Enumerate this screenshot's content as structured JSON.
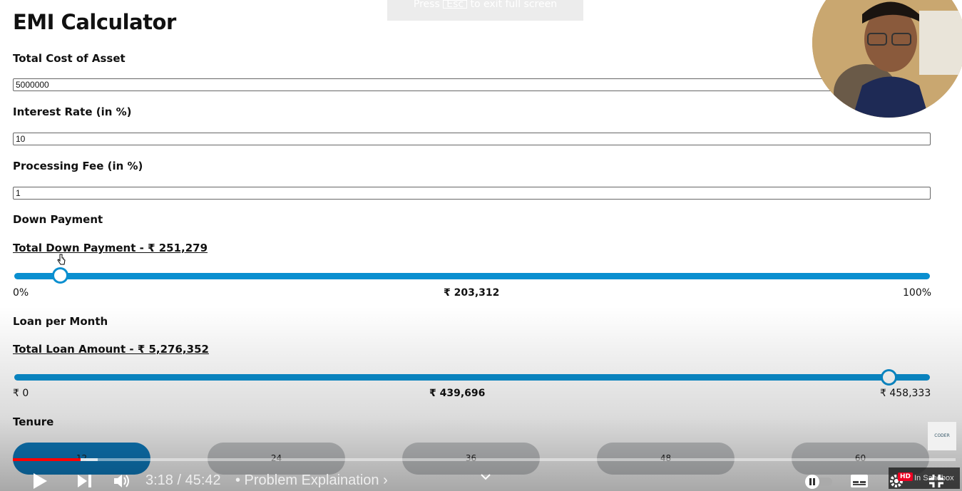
{
  "app": {
    "title": "EMI Calculator"
  },
  "fields": {
    "total_cost": {
      "label": "Total Cost of Asset",
      "value": "5000000"
    },
    "interest_rate": {
      "label": "Interest Rate (in %)",
      "value": "10"
    },
    "processing_fee": {
      "label": "Processing Fee (in %)",
      "value": "1"
    }
  },
  "down_payment": {
    "label": "Down Payment",
    "summary": "Total Down Payment - ₹ 251,279",
    "slider_fraction": 0.05,
    "min_label": "0%",
    "value_label": "₹ 203,312",
    "max_label": "100%"
  },
  "loan": {
    "label": "Loan per Month",
    "summary": "Total Loan Amount - ₹ 5,276,352",
    "slider_fraction": 0.955,
    "min_label": "₹ 0",
    "value_label": "₹ 439,696",
    "max_label": "₹ 458,333"
  },
  "tenure": {
    "label": "Tenure",
    "options": [
      "12",
      "24",
      "36",
      "48",
      "60"
    ],
    "selected": "12"
  },
  "fullscreen_hint": {
    "prefix": "Press",
    "key": "Esc",
    "suffix": "to exit full screen"
  },
  "player": {
    "time": "3:18 / 45:42",
    "chapter": "• Problem Explaination ›",
    "played_fraction": 0.072,
    "buffered_fraction": 0.09,
    "sandbox_label": "In Sandbox",
    "hd_badge": "HD",
    "logo_text": "CODER"
  },
  "colors": {
    "accent": "#0a8fd0",
    "tenure_active": "#0e7fc4",
    "progress": "#ff0000"
  }
}
